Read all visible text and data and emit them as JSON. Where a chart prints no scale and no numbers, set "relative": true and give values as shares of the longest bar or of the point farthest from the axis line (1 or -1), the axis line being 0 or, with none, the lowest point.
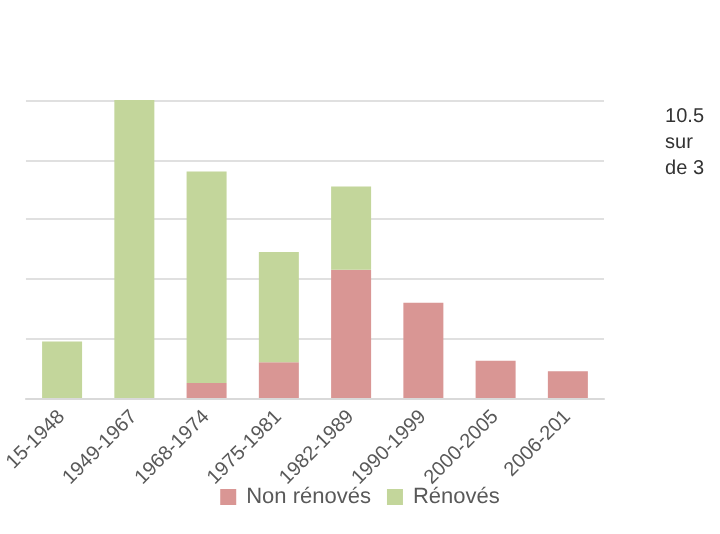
{
  "chart_data": {
    "type": "bar",
    "stacked": true,
    "relative": true,
    "grid": "y",
    "legend": "bottom",
    "categories": [
      "15-1948",
      "1949-1967",
      "1968-1974",
      "1975-1981",
      "1982-1989",
      "1990-1999",
      "2000-2005",
      "2006-201"
    ],
    "series": [
      {
        "name": "Non rénovés",
        "color": "#d99694",
        "values": [
          0,
          0,
          0.05,
          0.12,
          0.43,
          0.32,
          0.125,
          0.09
        ]
      },
      {
        "name": "Rénovés",
        "color": "#c3d69b",
        "values": [
          0.19,
          1,
          0.71,
          0.37,
          0.28,
          0,
          0,
          0
        ]
      }
    ],
    "annotations": [
      "10.5\nsur\nde 3"
    ]
  }
}
